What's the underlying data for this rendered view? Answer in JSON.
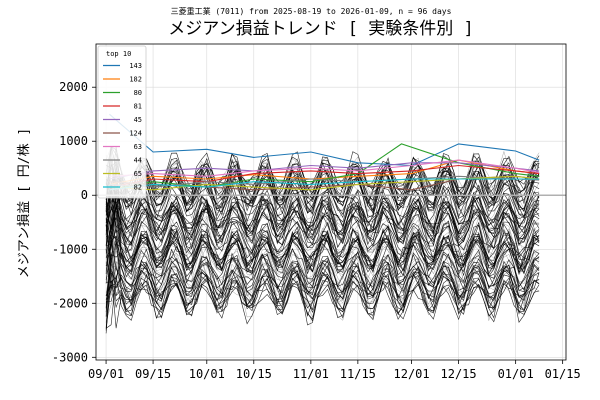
{
  "chart_data": {
    "type": "line",
    "subtitle": "三菱重工業 (7011) from 2025-08-19 to 2026-01-09, n = 96 days",
    "title": "メジアン損益トレンド [ 実験条件別 ]",
    "xlabel": "",
    "ylabel": "メジアン損益 [ 円/株 ]",
    "x_ticks": [
      "09/01",
      "09/15",
      "10/01",
      "10/15",
      "11/01",
      "11/15",
      "12/01",
      "12/15",
      "01/01",
      "01/15"
    ],
    "x_tick_dates": [
      "2025-09-01",
      "2025-09-15",
      "2025-10-01",
      "2025-10-15",
      "2025-11-01",
      "2025-11-15",
      "2025-12-01",
      "2025-12-15",
      "2026-01-01",
      "2026-01-15"
    ],
    "xlim": [
      "2025-08-29",
      "2026-01-16"
    ],
    "y_ticks": [
      -3000,
      -2000,
      -1000,
      0,
      1000,
      2000
    ],
    "ylim": [
      -3050,
      2800
    ],
    "grid": true,
    "zero_line": true,
    "legend": {
      "title": "top 10",
      "placement": "top-left"
    },
    "series": [
      {
        "name": "143",
        "color": "#1f77b4",
        "values": [
          [
            "2025-09-02",
            1500
          ],
          [
            "2025-09-15",
            800
          ],
          [
            "2025-10-01",
            850
          ],
          [
            "2025-10-15",
            700
          ],
          [
            "2025-11-01",
            800
          ],
          [
            "2025-11-15",
            600
          ],
          [
            "2025-12-01",
            550
          ],
          [
            "2025-12-15",
            950
          ],
          [
            "2026-01-01",
            820
          ],
          [
            "2026-01-08",
            650
          ]
        ]
      },
      {
        "name": "182",
        "color": "#ff7f0e",
        "values": [
          [
            "2025-09-02",
            200
          ],
          [
            "2025-09-15",
            350
          ],
          [
            "2025-10-01",
            300
          ],
          [
            "2025-10-15",
            380
          ],
          [
            "2025-11-01",
            300
          ],
          [
            "2025-11-15",
            350
          ],
          [
            "2025-12-01",
            400
          ],
          [
            "2025-12-15",
            650
          ],
          [
            "2026-01-01",
            450
          ],
          [
            "2026-01-08",
            400
          ]
        ]
      },
      {
        "name": "80",
        "color": "#2ca02c",
        "values": [
          [
            "2025-09-02",
            100
          ],
          [
            "2025-09-15",
            250
          ],
          [
            "2025-10-01",
            150
          ],
          [
            "2025-10-15",
            300
          ],
          [
            "2025-11-01",
            250
          ],
          [
            "2025-11-15",
            400
          ],
          [
            "2025-11-28",
            950
          ],
          [
            "2025-12-15",
            600
          ],
          [
            "2026-01-01",
            400
          ],
          [
            "2026-01-08",
            350
          ]
        ]
      },
      {
        "name": "81",
        "color": "#d62728",
        "values": [
          [
            "2025-09-02",
            150
          ],
          [
            "2025-09-15",
            300
          ],
          [
            "2025-10-01",
            250
          ],
          [
            "2025-10-15",
            400
          ],
          [
            "2025-11-01",
            450
          ],
          [
            "2025-11-15",
            400
          ],
          [
            "2025-12-01",
            450
          ],
          [
            "2025-12-15",
            550
          ],
          [
            "2026-01-01",
            450
          ],
          [
            "2026-01-08",
            400
          ]
        ]
      },
      {
        "name": "45",
        "color": "#9467bd",
        "values": [
          [
            "2025-09-02",
            300
          ],
          [
            "2025-09-15",
            450
          ],
          [
            "2025-10-01",
            500
          ],
          [
            "2025-10-15",
            450
          ],
          [
            "2025-11-01",
            550
          ],
          [
            "2025-11-15",
            500
          ],
          [
            "2025-12-01",
            600
          ],
          [
            "2025-12-15",
            600
          ],
          [
            "2026-01-01",
            500
          ],
          [
            "2026-01-08",
            450
          ]
        ]
      },
      {
        "name": "124",
        "color": "#8c564b",
        "values": [
          [
            "2025-09-02",
            250
          ],
          [
            "2025-09-15",
            200
          ],
          [
            "2025-10-01",
            150
          ],
          [
            "2025-10-15",
            100
          ],
          [
            "2025-11-01",
            150
          ],
          [
            "2025-11-15",
            200
          ],
          [
            "2025-12-01",
            100
          ],
          [
            "2025-12-15",
            300
          ],
          [
            "2026-01-01",
            350
          ],
          [
            "2026-01-08",
            300
          ]
        ]
      },
      {
        "name": "63",
        "color": "#e377c2",
        "values": [
          [
            "2025-09-02",
            350
          ],
          [
            "2025-09-15",
            400
          ],
          [
            "2025-10-01",
            350
          ],
          [
            "2025-10-15",
            450
          ],
          [
            "2025-11-01",
            500
          ],
          [
            "2025-11-15",
            450
          ],
          [
            "2025-12-01",
            550
          ],
          [
            "2025-12-15",
            650
          ],
          [
            "2026-01-01",
            500
          ],
          [
            "2026-01-08",
            420
          ]
        ]
      },
      {
        "name": "44",
        "color": "#7f7f7f",
        "values": [
          [
            "2025-09-02",
            200
          ],
          [
            "2025-09-15",
            150
          ],
          [
            "2025-10-01",
            250
          ],
          [
            "2025-10-15",
            200
          ],
          [
            "2025-11-01",
            300
          ],
          [
            "2025-11-15",
            250
          ],
          [
            "2025-12-01",
            300
          ],
          [
            "2025-12-15",
            350
          ],
          [
            "2026-01-01",
            300
          ],
          [
            "2026-01-08",
            280
          ]
        ]
      },
      {
        "name": "65",
        "color": "#bcbd22",
        "values": [
          [
            "2025-09-02",
            150
          ],
          [
            "2025-09-15",
            100
          ],
          [
            "2025-10-01",
            200
          ],
          [
            "2025-10-15",
            150
          ],
          [
            "2025-11-01",
            100
          ],
          [
            "2025-11-15",
            200
          ],
          [
            "2025-12-01",
            250
          ],
          [
            "2025-12-15",
            300
          ],
          [
            "2026-01-01",
            350
          ],
          [
            "2026-01-08",
            300
          ]
        ]
      },
      {
        "name": "82",
        "color": "#17becf",
        "values": [
          [
            "2025-09-02",
            100
          ],
          [
            "2025-09-15",
            200
          ],
          [
            "2025-10-01",
            150
          ],
          [
            "2025-10-15",
            250
          ],
          [
            "2025-11-01",
            200
          ],
          [
            "2025-11-15",
            250
          ],
          [
            "2025-12-01",
            300
          ],
          [
            "2025-12-15",
            300
          ],
          [
            "2026-01-01",
            300
          ],
          [
            "2026-01-08",
            300
          ]
        ]
      }
    ],
    "background_series_count": 86,
    "background_series_color": "#000000"
  }
}
